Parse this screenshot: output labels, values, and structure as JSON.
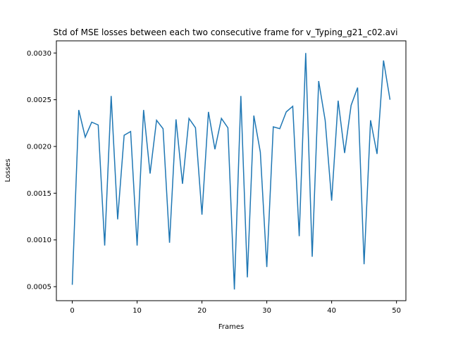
{
  "chart_data": {
    "type": "line",
    "title": "Std of MSE losses between each two consecutive frame for v_Typing_g21_c02.avi",
    "xlabel": "Frames",
    "ylabel": "Losses",
    "xlim": [
      -2.45,
      51.45
    ],
    "ylim": [
      0.00035,
      0.00313
    ],
    "xticks": [
      0,
      10,
      20,
      30,
      40,
      50
    ],
    "xtick_labels": [
      "0",
      "10",
      "20",
      "30",
      "40",
      "50"
    ],
    "yticks": [
      0.0005,
      0.001,
      0.0015,
      0.002,
      0.0025,
      0.003
    ],
    "ytick_labels": [
      "0.0005",
      "0.0010",
      "0.0015",
      "0.0020",
      "0.0025",
      "0.0030"
    ],
    "grid": false,
    "line_color": "#1f77b4",
    "series": [
      {
        "x": [
          0,
          1,
          2,
          3,
          4,
          5,
          6,
          7,
          8,
          9,
          10,
          11,
          12,
          13,
          14,
          15,
          16,
          17,
          18,
          19,
          20,
          21,
          22,
          23,
          24,
          25,
          26,
          27,
          28,
          29,
          30,
          31,
          32,
          33,
          34,
          35,
          36,
          37,
          38,
          39,
          40,
          41,
          42,
          43,
          44,
          45,
          46,
          47,
          48,
          49
        ],
        "values": [
          0.00052,
          0.00239,
          0.0021,
          0.00226,
          0.00223,
          0.00094,
          0.00254,
          0.00122,
          0.00212,
          0.00216,
          0.00094,
          0.00239,
          0.00171,
          0.00228,
          0.00219,
          0.00097,
          0.00229,
          0.0016,
          0.0023,
          0.0022,
          0.00127,
          0.00237,
          0.00197,
          0.0023,
          0.0022,
          0.00047,
          0.00254,
          0.0006,
          0.00233,
          0.00194,
          0.00071,
          0.00221,
          0.00219,
          0.00237,
          0.00243,
          0.00104,
          0.003,
          0.00082,
          0.0027,
          0.00228,
          0.00142,
          0.00249,
          0.00193,
          0.00244,
          0.00263,
          0.00074,
          0.00228,
          0.00192,
          0.00292,
          0.0025
        ]
      }
    ]
  }
}
